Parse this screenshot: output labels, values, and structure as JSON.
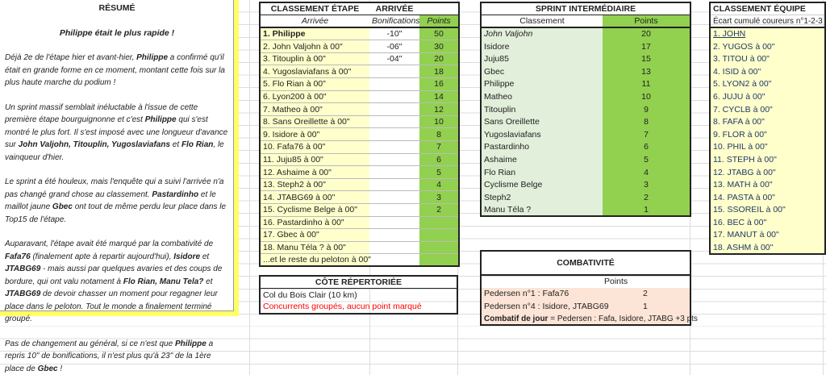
{
  "summary": {
    "title": "RÉSUMÉ",
    "headline": "Philippe était le plus rapide !",
    "p1": [
      "Déjà 2e de l'étape hier et avant-hier, ",
      "Philippe",
      " a confirmé qu'il était en grande forme en ce moment, montant cette fois sur la plus haute marche du podium !"
    ],
    "p2": [
      "Un sprint massif semblait inéluctable à l'issue de cette première étape bourguignonne et c'est ",
      "Philippe",
      " qui s'est montré le plus fort. Il s'est imposé avec une longueur d'avance sur ",
      "John Valjohn, Titouplin, Yugoslaviafans",
      " et ",
      "Flo Rian",
      ", le vainqueur d'hier."
    ],
    "p3": [
      "Le sprint a été houleux, mais l'enquête qui a suivi l'arrivée n'a pas changé grand chose au classement. ",
      "Pastardinho",
      " et  le maillot jaune ",
      "Gbec",
      " ont tout de même perdu leur place dans le Top15 de l'étape."
    ],
    "p4": [
      "Auparavant, l'étape avait été marqué par la combativité de ",
      "Fafa76",
      "  (finalement apte à repartir aujourd'hui), ",
      "Isidore",
      " et ",
      "JTABG69",
      " - mais aussi par quelques avaries et des coups de bordure, qui ont valu notament à ",
      "Flo Rian, Manu Tela?",
      " et ",
      "JTABG69",
      " de devoir chasser un moment pour regagner leur place dans le peloton.  Tout le monde a finalement terminé groupé."
    ],
    "p5": [
      "Pas de changement au général, si ce  n'est que ",
      "Philippe",
      " a repris 10\" de bonifications, il n'est plus qu'à 23\" de la 1ère place de ",
      "Gbec",
      " !"
    ]
  },
  "stage": {
    "title": "CLASSEMENT ÉTAPE",
    "title2": "ARRIVÉE",
    "col_arrival": "Arrivée",
    "col_bonus": "Bonifications",
    "col_points": "Points",
    "rows": [
      {
        "name": "1. Philippe",
        "bonus": "-10\"",
        "points": "50"
      },
      {
        "name": "2. John Valjohn à 00\"",
        "bonus": "-06\"",
        "points": "30"
      },
      {
        "name": "3. Titouplin à 00\"",
        "bonus": "-04\"",
        "points": "20"
      },
      {
        "name": "4. Yugoslaviafans à 00\"",
        "bonus": "",
        "points": "18"
      },
      {
        "name": "5. Flo Rian à 00\"",
        "bonus": "",
        "points": "16"
      },
      {
        "name": "6. Lyon200 à 00\"",
        "bonus": "",
        "points": "14"
      },
      {
        "name": "7. Matheo à 00\"",
        "bonus": "",
        "points": "12"
      },
      {
        "name": "8. Sans Oreillette à 00\"",
        "bonus": "",
        "points": "10"
      },
      {
        "name": "9. Isidore à 00\"",
        "bonus": "",
        "points": "8"
      },
      {
        "name": "10. Fafa76 à 00\"",
        "bonus": "",
        "points": "7"
      },
      {
        "name": "11. Juju85 à 00\"",
        "bonus": "",
        "points": "6"
      },
      {
        "name": "12. Ashaime à 00\"",
        "bonus": "",
        "points": "5"
      },
      {
        "name": "13. Steph2 à 00\"",
        "bonus": "",
        "points": "4"
      },
      {
        "name": "14. JTABG69 à 00\"",
        "bonus": "",
        "points": "3"
      },
      {
        "name": "15. Cyclisme Belge à 00\"",
        "bonus": "",
        "points": "2"
      },
      {
        "name": "16. Pastardinho à 00\"",
        "bonus": "",
        "points": ""
      },
      {
        "name": "17. Gbec à 00\"",
        "bonus": "",
        "points": ""
      },
      {
        "name": "18. Manu Téla ? à 00\"",
        "bonus": "",
        "points": ""
      },
      {
        "name": "...et le reste du peloton à 00\"",
        "bonus": "",
        "points": ""
      }
    ]
  },
  "climb": {
    "title": "CÔTE RÉPERTORIÉE",
    "name": "Col du Bois Clair (10 km)",
    "note": "Concurrents groupés, aucun point marqué",
    "note_color": "#ff0000"
  },
  "sprint": {
    "title": "SPRINT INTERMÉDIAIRE",
    "col_rank": "Classement",
    "col_points": "Points",
    "rows": [
      [
        "John Valjohn",
        "20"
      ],
      [
        "Isidore",
        "17"
      ],
      [
        "Juju85",
        "15"
      ],
      [
        "Gbec",
        "13"
      ],
      [
        "Philippe",
        "11"
      ],
      [
        "Matheo",
        "10"
      ],
      [
        "Titouplin",
        "9"
      ],
      [
        "Sans Oreillette",
        "8"
      ],
      [
        "Yugoslaviafans",
        "7"
      ],
      [
        "Pastardinho",
        "6"
      ],
      [
        "Ashaime",
        "5"
      ],
      [
        "Flo Rian",
        "4"
      ],
      [
        "Cyclisme Belge",
        "3"
      ],
      [
        "Steph2",
        "2"
      ],
      [
        "Manu Téla ?",
        "1"
      ]
    ]
  },
  "combat": {
    "title": "COMBATIVITÉ",
    "col_points": "Points",
    "rows": [
      [
        "Pedersen n°1 : Fafa76",
        "2"
      ],
      [
        "Pedersen n°4 : Isidore, JTABG69",
        "1"
      ]
    ],
    "day_label": "Combatif de jour",
    "day_value": " = Pedersen : Fafa, Isidore, JTABG +3 pts"
  },
  "team": {
    "title": "CLASSEMENT  ÉQUIPE",
    "subtitle": "Écart cumulé coureurs n°1-2-3",
    "rows": [
      "1. JOHN",
      "2. YUGOS à 00\"",
      "3. TITOU à 00\"",
      "4. ISID à 00\"",
      "5. LYON2 à 00\"",
      "6. JUJU à 00\"",
      "7. CYCLB à 00\"",
      "8. FAFA à 00\"",
      "9. FLOR à 00\"",
      "10. PHIL à 00\"",
      "11. STEPH à 00\"",
      "12. JTABG à 00\"",
      "13. MATH à 00\"",
      "14. PASTA à 00\"",
      "15. SSOREIL à 00\"",
      "16. BEC à 00\"",
      "17. MANUT à 00\"",
      "18. ASHM à 00\""
    ]
  },
  "colors": {
    "points_green": "#92d050",
    "light_yellow": "#ffffcc",
    "light_green": "#e2efda",
    "pink": "#fce4d6",
    "summary_border": "#ffff66",
    "team_text": "#1f3864"
  }
}
